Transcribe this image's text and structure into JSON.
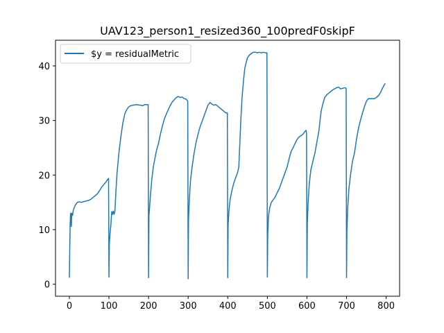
{
  "chart_data": {
    "type": "line",
    "title": "UAV123_person1_resized360_100predF0skipF",
    "xlabel": "",
    "ylabel": "",
    "xlim": [
      -35,
      834
    ],
    "ylim": [
      -2.2,
      44.7
    ],
    "xticks": [
      0,
      100,
      200,
      300,
      400,
      500,
      600,
      700,
      800
    ],
    "yticks": [
      0,
      10,
      20,
      30,
      40
    ],
    "grid": false,
    "legend_position": "upper left",
    "series": [
      {
        "name": "$y = residualMetric",
        "color": "#1f77b4",
        "points": [
          [
            0,
            1.3
          ],
          [
            1,
            6.5
          ],
          [
            2,
            10.8
          ],
          [
            3,
            13.0
          ],
          [
            4,
            12.5
          ],
          [
            5,
            10.6
          ],
          [
            6,
            13.0
          ],
          [
            8,
            12.6
          ],
          [
            10,
            13.6
          ],
          [
            15,
            14.5
          ],
          [
            20,
            15.0
          ],
          [
            25,
            15.1
          ],
          [
            30,
            15.0
          ],
          [
            35,
            15.1
          ],
          [
            40,
            15.2
          ],
          [
            45,
            15.3
          ],
          [
            50,
            15.4
          ],
          [
            55,
            15.6
          ],
          [
            60,
            15.9
          ],
          [
            65,
            16.2
          ],
          [
            70,
            16.5
          ],
          [
            75,
            17.0
          ],
          [
            80,
            17.6
          ],
          [
            85,
            18.1
          ],
          [
            90,
            18.5
          ],
          [
            95,
            19.0
          ],
          [
            98,
            19.3
          ],
          [
            99,
            19.4
          ],
          [
            100,
            1.3
          ],
          [
            101,
            7.5
          ],
          [
            103,
            9.5
          ],
          [
            105,
            11.0
          ],
          [
            107,
            13.3
          ],
          [
            109,
            12.8
          ],
          [
            111,
            13.4
          ],
          [
            113,
            12.8
          ],
          [
            115,
            13.4
          ],
          [
            118,
            17.5
          ],
          [
            120,
            20.0
          ],
          [
            125,
            24.0
          ],
          [
            130,
            27.0
          ],
          [
            135,
            29.5
          ],
          [
            140,
            31.2
          ],
          [
            145,
            32.0
          ],
          [
            150,
            32.5
          ],
          [
            155,
            32.7
          ],
          [
            160,
            32.8
          ],
          [
            170,
            32.9
          ],
          [
            180,
            32.8
          ],
          [
            185,
            32.7
          ],
          [
            190,
            32.9
          ],
          [
            199,
            32.9
          ],
          [
            200,
            1.2
          ],
          [
            201,
            12.5
          ],
          [
            203,
            14.5
          ],
          [
            205,
            16.5
          ],
          [
            208,
            19.0
          ],
          [
            212,
            21.5
          ],
          [
            216,
            23.0
          ],
          [
            220,
            24.5
          ],
          [
            225,
            25.8
          ],
          [
            230,
            27.5
          ],
          [
            235,
            29.0
          ],
          [
            240,
            30.3
          ],
          [
            245,
            31.2
          ],
          [
            250,
            32.0
          ],
          [
            255,
            32.8
          ],
          [
            260,
            33.4
          ],
          [
            265,
            33.8
          ],
          [
            270,
            34.2
          ],
          [
            275,
            34.4
          ],
          [
            280,
            34.2
          ],
          [
            285,
            34.3
          ],
          [
            290,
            34.0
          ],
          [
            295,
            33.9
          ],
          [
            299,
            33.5
          ],
          [
            300,
            1.0
          ],
          [
            301,
            12.0
          ],
          [
            303,
            15.5
          ],
          [
            306,
            19.0
          ],
          [
            310,
            21.5
          ],
          [
            315,
            24.0
          ],
          [
            320,
            26.0
          ],
          [
            325,
            27.5
          ],
          [
            330,
            28.8
          ],
          [
            335,
            29.8
          ],
          [
            340,
            30.8
          ],
          [
            345,
            31.8
          ],
          [
            350,
            32.8
          ],
          [
            355,
            33.3
          ],
          [
            360,
            33.0
          ],
          [
            365,
            32.8
          ],
          [
            370,
            32.9
          ],
          [
            375,
            32.6
          ],
          [
            380,
            32.3
          ],
          [
            385,
            32.0
          ],
          [
            390,
            31.7
          ],
          [
            395,
            31.4
          ],
          [
            399,
            31.4
          ],
          [
            400,
            1.2
          ],
          [
            401,
            11.0
          ],
          [
            403,
            13.5
          ],
          [
            406,
            15.5
          ],
          [
            410,
            17.0
          ],
          [
            415,
            18.5
          ],
          [
            420,
            19.5
          ],
          [
            425,
            20.5
          ],
          [
            428,
            21.5
          ],
          [
            430,
            25.0
          ],
          [
            433,
            30.0
          ],
          [
            436,
            34.0
          ],
          [
            440,
            37.5
          ],
          [
            443,
            39.5
          ],
          [
            446,
            40.5
          ],
          [
            450,
            41.5
          ],
          [
            455,
            42.0
          ],
          [
            460,
            42.3
          ],
          [
            465,
            42.5
          ],
          [
            470,
            42.5
          ],
          [
            475,
            42.4
          ],
          [
            480,
            42.5
          ],
          [
            485,
            42.4
          ],
          [
            490,
            42.5
          ],
          [
            495,
            42.4
          ],
          [
            499,
            42.4
          ],
          [
            500,
            1.3
          ],
          [
            501,
            9.0
          ],
          [
            503,
            12.5
          ],
          [
            506,
            14.0
          ],
          [
            510,
            15.0
          ],
          [
            515,
            15.5
          ],
          [
            520,
            16.0
          ],
          [
            525,
            16.8
          ],
          [
            530,
            17.5
          ],
          [
            535,
            18.5
          ],
          [
            540,
            19.5
          ],
          [
            545,
            20.5
          ],
          [
            550,
            21.5
          ],
          [
            555,
            23.0
          ],
          [
            560,
            24.3
          ],
          [
            565,
            25.0
          ],
          [
            570,
            25.8
          ],
          [
            575,
            26.5
          ],
          [
            580,
            27.0
          ],
          [
            585,
            27.2
          ],
          [
            590,
            27.5
          ],
          [
            595,
            28.0
          ],
          [
            598,
            28.2
          ],
          [
            599,
            27.6
          ],
          [
            600,
            1.2
          ],
          [
            601,
            11.0
          ],
          [
            603,
            15.0
          ],
          [
            606,
            18.5
          ],
          [
            610,
            21.0
          ],
          [
            615,
            22.5
          ],
          [
            620,
            24.0
          ],
          [
            625,
            26.0
          ],
          [
            630,
            28.0
          ],
          [
            633,
            30.0
          ],
          [
            636,
            31.8
          ],
          [
            640,
            33.0
          ],
          [
            645,
            34.2
          ],
          [
            650,
            34.7
          ],
          [
            655,
            35.0
          ],
          [
            660,
            35.3
          ],
          [
            665,
            35.6
          ],
          [
            670,
            35.8
          ],
          [
            675,
            36.0
          ],
          [
            680,
            36.1
          ],
          [
            685,
            35.8
          ],
          [
            690,
            35.9
          ],
          [
            695,
            36.0
          ],
          [
            699,
            35.9
          ],
          [
            700,
            1.2
          ],
          [
            701,
            10.0
          ],
          [
            703,
            14.0
          ],
          [
            706,
            17.5
          ],
          [
            710,
            20.0
          ],
          [
            715,
            22.5
          ],
          [
            720,
            24.0
          ],
          [
            725,
            26.5
          ],
          [
            730,
            28.5
          ],
          [
            735,
            30.0
          ],
          [
            740,
            31.3
          ],
          [
            745,
            32.5
          ],
          [
            750,
            33.5
          ],
          [
            755,
            34.0
          ],
          [
            760,
            34.0
          ],
          [
            765,
            34.0
          ],
          [
            770,
            34.0
          ],
          [
            775,
            34.2
          ],
          [
            780,
            34.5
          ],
          [
            785,
            35.0
          ],
          [
            790,
            35.8
          ],
          [
            795,
            36.5
          ],
          [
            797,
            36.7
          ]
        ]
      }
    ]
  }
}
